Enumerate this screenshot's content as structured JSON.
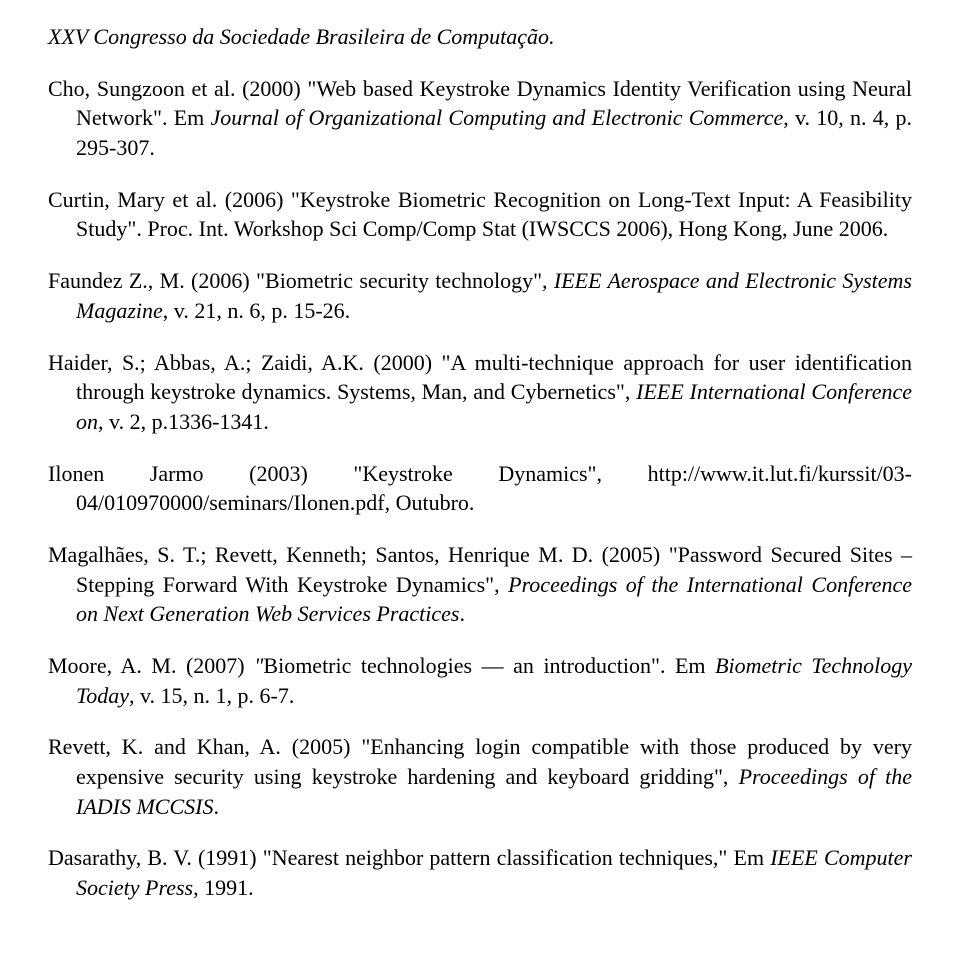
{
  "header": "XXV Congresso da Sociedade Brasileira de Computação.",
  "refs": [
    {
      "html": "Cho, Sungzoon et al. (2000) \"Web based Keystroke Dynamics Identity Verification using Neural Network\". Em <span class=\"italic\">Journal of Organizational Computing and Electronic Commerce</span>, v. 10, n. 4, p. 295-307."
    },
    {
      "html": "Curtin, Mary et al. (2006) \"Keystroke Biometric Recognition on Long-Text Input: A Feasibility Study\". Proc. Int. Workshop Sci Comp/Comp Stat (IWSCCS 2006), Hong Kong, June 2006."
    },
    {
      "html": "Faundez Z., M. (2006) \"Biometric security technology\", <span class=\"italic\">IEEE Aerospace and Electronic Systems Magazine</span>, v. 21, n. 6, p. 15-26."
    },
    {
      "html": "Haider, S.; Abbas, A.; Zaidi, A.K. (2000) \"A multi-technique approach for user identification through keystroke dynamics. Systems, Man, and Cybernetics\", <span class=\"italic\">IEEE International Conference on</span>, v. 2, p.1336-1341."
    },
    {
      "html": "Ilonen Jarmo (2003) \"Keystroke Dynamics\", http://www.it.lut.fi/kurssit/03-04/010970000/seminars/Ilonen.pdf, Outubro."
    },
    {
      "html": "Magalhães, S. T.; Revett, Kenneth; Santos, Henrique M. D. (2005) \"Password Secured Sites – Stepping Forward With Keystroke Dynamics\", <span class=\"italic\">Proceedings of the International Conference on Next Generation Web Services Practices</span>."
    },
    {
      "html": "Moore, A. M. (2007) <span class=\"italic\">\"</span>Biometric technologies — an introduction\". Em <span class=\"italic\">Biometric Technology Today</span>, v. 15, n. 1, p. 6-7."
    },
    {
      "html": "Revett, K. and Khan, A. (2005) \"Enhancing login compatible with those produced by very expensive security using keystroke hardening and keyboard gridding\", <span class=\"italic\">Proceedings of the IADIS MCCSIS</span>."
    },
    {
      "html": "Dasarathy, B. V. (1991) \"Nearest neighbor pattern classification techniques,\" Em <span class=\"italic\">IEEE Computer Society Press</span>, 1991."
    }
  ]
}
